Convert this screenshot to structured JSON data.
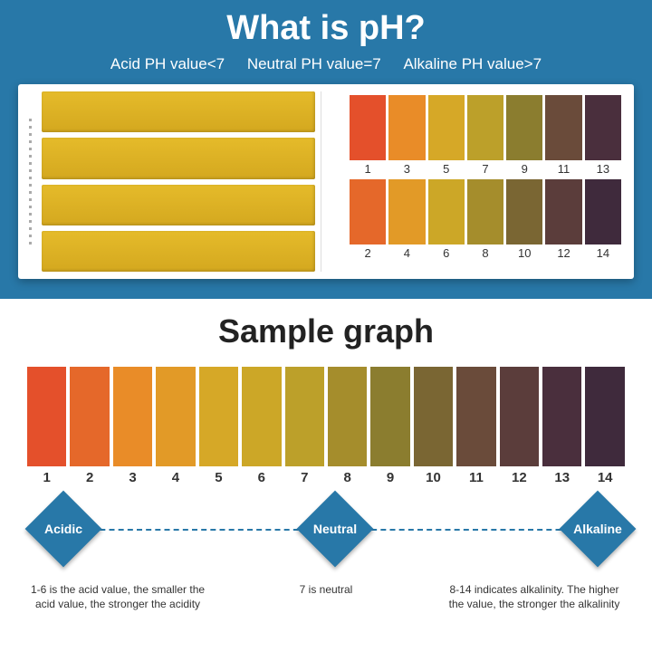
{
  "top": {
    "title": "What is pH?",
    "subtitles": {
      "acid": "Acid PH value<7",
      "neutral": "Neutral PH value=7",
      "alkaline": "Alkaline PH value>7"
    }
  },
  "booklet": {
    "strip_color": "#d9ad21",
    "rows": [
      {
        "labels": [
          "1",
          "3",
          "5",
          "7",
          "9",
          "11",
          "13"
        ],
        "colors": [
          "#e4502b",
          "#e98c28",
          "#d6a827",
          "#bca02a",
          "#8b7d2f",
          "#6a4b3a",
          "#4a2f3d"
        ]
      },
      {
        "labels": [
          "2",
          "4",
          "6",
          "8",
          "10",
          "12",
          "14"
        ],
        "colors": [
          "#e5682a",
          "#e29a27",
          "#cca727",
          "#a58d2c",
          "#7a6633",
          "#5b3d3b",
          "#3f2a3c"
        ]
      }
    ]
  },
  "sample": {
    "title": "Sample graph",
    "labels": [
      "1",
      "2",
      "3",
      "4",
      "5",
      "6",
      "7",
      "8",
      "9",
      "10",
      "11",
      "12",
      "13",
      "14"
    ],
    "colors": [
      "#e4502b",
      "#e5682a",
      "#e98c28",
      "#e29a27",
      "#d6a827",
      "#cca727",
      "#bca02a",
      "#a58d2c",
      "#8b7d2f",
      "#7a6633",
      "#6a4b3a",
      "#5b3d3b",
      "#4a2f3d",
      "#3f2a3c"
    ]
  },
  "diamonds": {
    "acidic": "Acidic",
    "neutral": "Neutral",
    "alkaline": "Alkaline"
  },
  "footer": {
    "left": "1-6 is the acid value, the smaller the acid value, the stronger the acidity",
    "mid": "7 is neutral",
    "right": "8-14 indicates alkalinity. The higher the value, the stronger the alkalinity"
  },
  "colors": {
    "brand": "#2878a8"
  }
}
